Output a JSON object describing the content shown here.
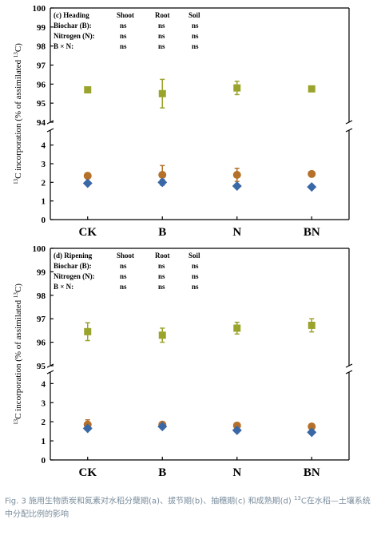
{
  "chart_data": [
    {
      "type": "scatter",
      "panel_label": "(c) Heading",
      "y_label": [
        "13",
        "C incorporation (% of assimilated ",
        "13",
        "C)"
      ],
      "categories": [
        "CK",
        "B",
        "N",
        "BN"
      ],
      "series": [
        {
          "name": "Shoot",
          "color": "#9aa32c",
          "marker": "square",
          "values": [
            95.7,
            95.5,
            95.8,
            95.75
          ],
          "errors": [
            0.15,
            0.75,
            0.35,
            0.05
          ]
        },
        {
          "name": "Root",
          "color": "#b5702a",
          "marker": "circle",
          "values": [
            2.35,
            2.4,
            2.4,
            2.45
          ],
          "errors": [
            0.1,
            0.5,
            0.35,
            0.1
          ]
        },
        {
          "name": "Soil",
          "color": "#3a68a6",
          "marker": "diamond",
          "values": [
            1.95,
            2.0,
            1.8,
            1.75
          ],
          "errors": [
            0.08,
            0.15,
            0.1,
            0.08
          ]
        }
      ],
      "significance": [
        {
          "label": "Biochar (B):",
          "values": [
            "ns",
            "ns",
            "ns"
          ]
        },
        {
          "label": "Nitrogen (N):",
          "values": [
            "ns",
            "ns",
            "ns"
          ]
        },
        {
          "label": "B × N:",
          "values": [
            "ns",
            "ns",
            "ns"
          ]
        }
      ],
      "ylim_upper": [
        94,
        100
      ],
      "yticks_upper": [
        94,
        95,
        96,
        97,
        98,
        99,
        100
      ],
      "ylim": [
        0,
        4.8
      ],
      "yticks": [
        0,
        1,
        2,
        3,
        4
      ]
    },
    {
      "type": "scatter",
      "panel_label": "(d) Ripening",
      "y_label": [
        "13",
        "C incorporation (% of assimilated ",
        "13",
        "C)"
      ],
      "categories": [
        "CK",
        "B",
        "N",
        "BN"
      ],
      "series": [
        {
          "name": "Shoot",
          "color": "#9aa32c",
          "marker": "square",
          "values": [
            96.45,
            96.3,
            96.6,
            96.72
          ],
          "errors": [
            0.38,
            0.3,
            0.25,
            0.28
          ]
        },
        {
          "name": "Root",
          "color": "#b5702a",
          "marker": "circle",
          "values": [
            1.85,
            1.85,
            1.8,
            1.75
          ],
          "errors": [
            0.25,
            0.1,
            0.1,
            0.1
          ]
        },
        {
          "name": "Soil",
          "color": "#3a68a6",
          "marker": "diamond",
          "values": [
            1.65,
            1.75,
            1.55,
            1.45
          ],
          "errors": [
            0.1,
            0.1,
            0.1,
            0.1
          ]
        }
      ],
      "significance": [
        {
          "label": "Biochar (B):",
          "values": [
            "ns",
            "ns",
            "ns"
          ]
        },
        {
          "label": "Nitrogen (N):",
          "values": [
            "ns",
            "ns",
            "ns"
          ]
        },
        {
          "label": "B × N:",
          "values": [
            "ns",
            "ns",
            "ns"
          ]
        }
      ],
      "ylim_upper": [
        95,
        100
      ],
      "yticks_upper": [
        95,
        96,
        97,
        98,
        99,
        100
      ],
      "ylim": [
        0,
        4.6
      ],
      "yticks": [
        0,
        1,
        2,
        3,
        4
      ]
    }
  ],
  "caption": {
    "before": "Fig. 3 施用生物质炭和氮素对水稻分蘖期(a)、拔节期(b)、抽穗期(c) 和成熟期(d) ",
    "sup": "13",
    "after": "C在水稻—土壤系统中分配比例的影响"
  }
}
